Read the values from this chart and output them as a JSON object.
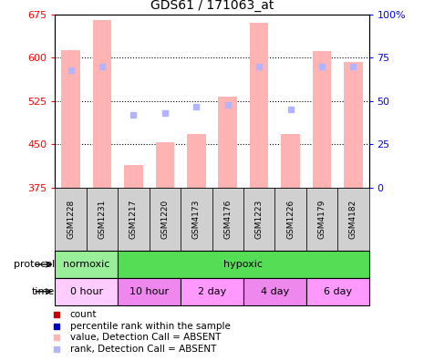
{
  "title": "GDS61 / 171063_at",
  "samples": [
    "GSM1228",
    "GSM1231",
    "GSM1217",
    "GSM1220",
    "GSM4173",
    "GSM4176",
    "GSM1223",
    "GSM1226",
    "GSM4179",
    "GSM4182"
  ],
  "bar_values": [
    613,
    665,
    415,
    453,
    468,
    532,
    660,
    468,
    612,
    593
  ],
  "rank_values": [
    68,
    70,
    42,
    43,
    47,
    48,
    70,
    45,
    70,
    70
  ],
  "ylim_left": [
    375,
    675
  ],
  "ylim_right": [
    0,
    100
  ],
  "yticks_left": [
    375,
    450,
    525,
    600,
    675
  ],
  "yticks_right": [
    0,
    25,
    50,
    75,
    100
  ],
  "bar_color": "#ffb3b3",
  "rank_color": "#b3b3ff",
  "gridline_ticks": [
    450,
    525,
    600
  ],
  "sample_box_color": "#d0d0d0",
  "proto_spans": [
    {
      "label": "normoxic",
      "color": "#99ee99",
      "xstart": 0,
      "xend": 2
    },
    {
      "label": "hypoxic",
      "color": "#55dd55",
      "xstart": 2,
      "xend": 10
    }
  ],
  "time_spans": [
    {
      "label": "0 hour",
      "color": "#ffccff",
      "xstart": 0,
      "xend": 2
    },
    {
      "label": "10 hour",
      "color": "#ee88ee",
      "xstart": 2,
      "xend": 4
    },
    {
      "label": "2 day",
      "color": "#ff99ff",
      "xstart": 4,
      "xend": 6
    },
    {
      "label": "4 day",
      "color": "#ee88ee",
      "xstart": 6,
      "xend": 8
    },
    {
      "label": "6 day",
      "color": "#ff99ff",
      "xstart": 8,
      "xend": 10
    }
  ],
  "legend_items": [
    {
      "label": "count",
      "color": "#cc0000"
    },
    {
      "label": "percentile rank within the sample",
      "color": "#0000cc"
    },
    {
      "label": "value, Detection Call = ABSENT",
      "color": "#ffb3b3"
    },
    {
      "label": "rank, Detection Call = ABSENT",
      "color": "#b3b3ff"
    }
  ]
}
